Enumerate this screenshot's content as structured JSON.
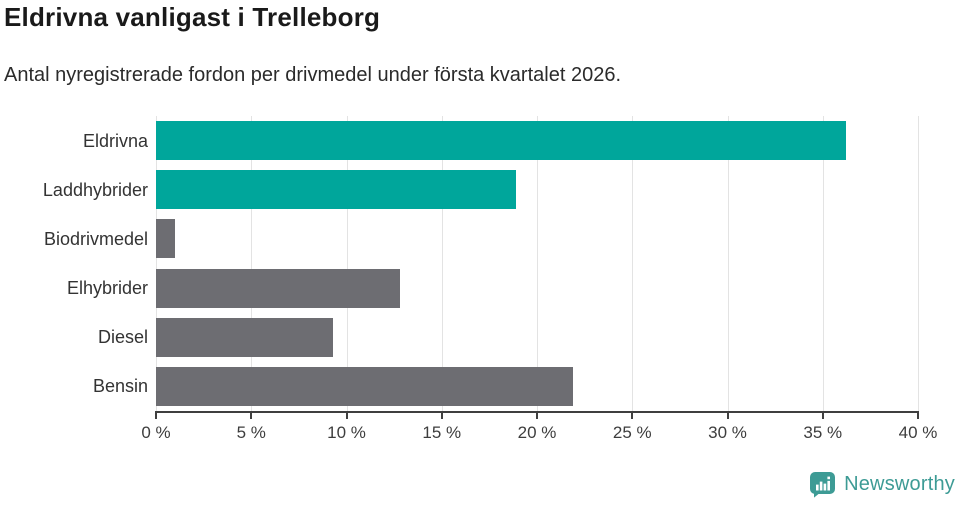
{
  "header": {
    "title": "Eldrivna vanligast i Trelleborg",
    "subtitle": "Antal nyregistrerade fordon per drivmedel under första kvartalet 2026."
  },
  "chart_data": {
    "type": "bar",
    "orientation": "horizontal",
    "title": "Eldrivna vanligast i Trelleborg",
    "subtitle": "Antal nyregistrerade fordon per drivmedel under första kvartalet 2026.",
    "categories": [
      "Eldrivna",
      "Laddhybrider",
      "Biodrivmedel",
      "Elhybrider",
      "Diesel",
      "Bensin"
    ],
    "values": [
      36.2,
      18.9,
      1.0,
      12.8,
      9.3,
      21.9
    ],
    "unit": "%",
    "bar_colors": [
      "#00a69b",
      "#00a69b",
      "#6d6d72",
      "#6d6d72",
      "#6d6d72",
      "#6d6d72"
    ],
    "xlim": [
      0,
      40
    ],
    "xticks": [
      0,
      5,
      10,
      15,
      20,
      25,
      30,
      35,
      40
    ],
    "xtick_labels": [
      "0 %",
      "5 %",
      "10 %",
      "15 %",
      "20 %",
      "25 %",
      "30 %",
      "35 %",
      "40 %"
    ],
    "grid": "vertical-only",
    "legend": "none"
  },
  "colors": {
    "accent_teal": "#00a69b",
    "neutral_gray": "#6d6d72",
    "gridline": "#e3e3e3",
    "axis": "#3f3f3f",
    "title_text": "#1a1a1a",
    "logo_teal": "#3d9b95"
  },
  "footer": {
    "brand": "Newsworthy",
    "logo_icon": "bar-chart-speech-bubble-icon"
  }
}
